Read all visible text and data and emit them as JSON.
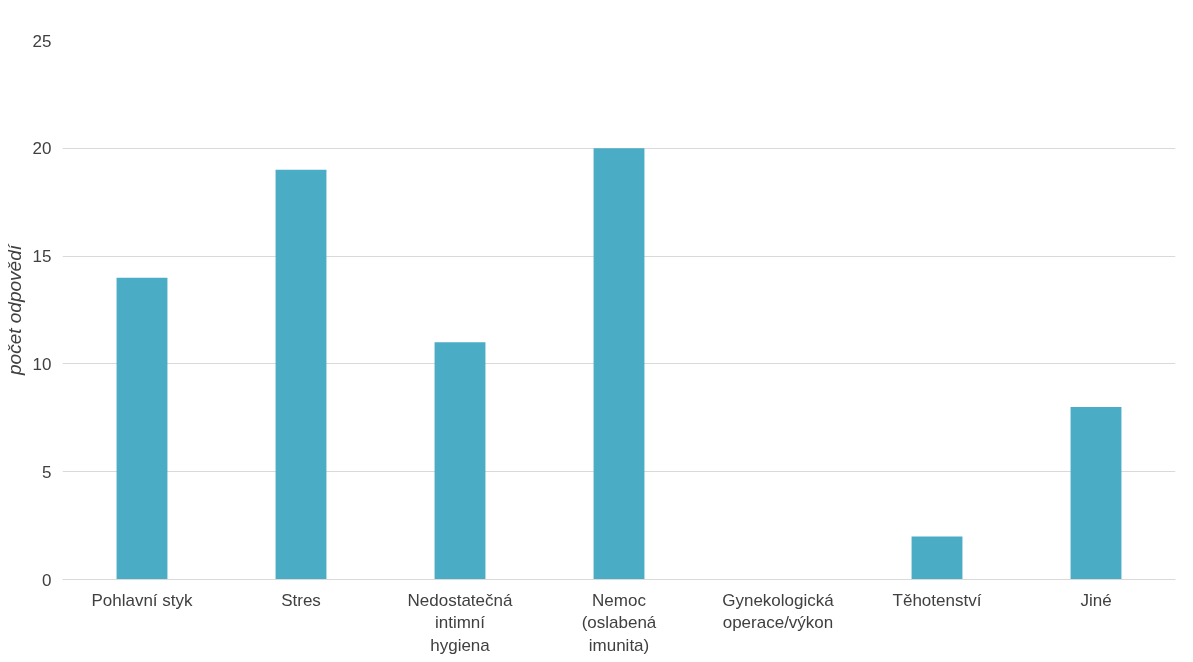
{
  "chart_data": {
    "type": "bar",
    "ylabel": "počet odpovědí",
    "categories": [
      "Pohlavní styk",
      "Stres",
      "Nedostatečná intimní hygiena",
      "Nemoc (oslabená imunita)",
      "Gynekologická operace/výkon",
      "Těhotenství",
      "Jiné"
    ],
    "values": [
      14,
      19,
      11,
      20,
      0,
      2,
      8
    ],
    "color": "#4bacc6",
    "ylim": [
      0,
      25
    ],
    "yticks": [
      0,
      5,
      10,
      15,
      20,
      25
    ],
    "grid": "y"
  }
}
